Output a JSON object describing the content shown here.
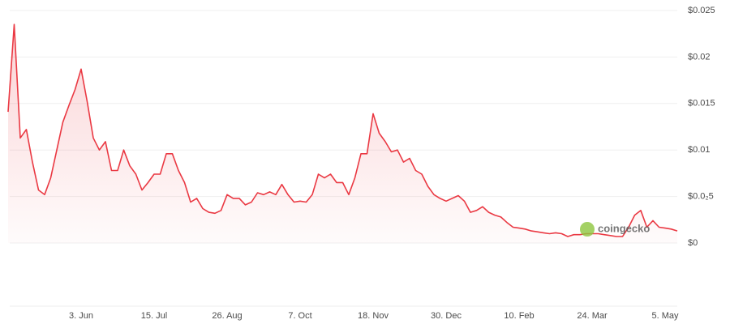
{
  "chart_data": {
    "type": "line",
    "watermark": "coingecko",
    "categories": [
      null,
      null,
      null,
      null,
      null,
      null,
      null,
      null,
      null,
      null,
      null,
      null,
      "3. Jun",
      null,
      null,
      null,
      null,
      null,
      null,
      null,
      null,
      null,
      null,
      null,
      "15. Jul",
      null,
      null,
      null,
      null,
      null,
      null,
      null,
      null,
      null,
      null,
      null,
      "26. Aug",
      null,
      null,
      null,
      null,
      null,
      null,
      null,
      null,
      null,
      null,
      null,
      "7. Oct",
      null,
      null,
      null,
      null,
      null,
      null,
      null,
      null,
      null,
      null,
      null,
      "18. Nov",
      null,
      null,
      null,
      null,
      null,
      null,
      null,
      null,
      null,
      null,
      null,
      "30. Dec",
      null,
      null,
      null,
      null,
      null,
      null,
      null,
      null,
      null,
      null,
      null,
      "10. Feb",
      null,
      null,
      null,
      null,
      null,
      null,
      null,
      null,
      null,
      null,
      null,
      "24. Mar",
      null,
      null,
      null,
      null,
      null,
      null,
      null,
      null,
      null,
      null,
      null,
      "5. May",
      null,
      null
    ],
    "series": [
      {
        "color": "#ea3943",
        "values": [
          0.0141,
          0.0235,
          0.0113,
          0.0122,
          0.0087,
          0.0057,
          0.0052,
          0.007,
          0.01,
          0.013,
          0.0148,
          0.0165,
          0.0187,
          0.0152,
          0.0113,
          0.01,
          0.0109,
          0.0078,
          0.0078,
          0.01,
          0.0083,
          0.0074,
          0.0057,
          0.0065,
          0.0074,
          0.0074,
          0.0096,
          0.0096,
          0.0078,
          0.0065,
          0.0044,
          0.0048,
          0.0037,
          0.0033,
          0.0032,
          0.0035,
          0.0052,
          0.0048,
          0.0048,
          0.0041,
          0.0044,
          0.0054,
          0.0052,
          0.0055,
          0.0052,
          0.0063,
          0.0052,
          0.0044,
          0.0045,
          0.0044,
          0.0052,
          0.0074,
          0.007,
          0.0074,
          0.0065,
          0.0065,
          0.0052,
          0.007,
          0.0096,
          0.0096,
          0.0139,
          0.0118,
          0.0109,
          0.0098,
          0.01,
          0.0087,
          0.0091,
          0.0078,
          0.0074,
          0.0061,
          0.0052,
          0.0048,
          0.0045,
          0.0048,
          0.0051,
          0.0045,
          0.0033,
          0.0035,
          0.0039,
          0.0033,
          0.003,
          0.0028,
          0.0022,
          0.0017,
          0.0016,
          0.0015,
          0.0013,
          0.0012,
          0.0011,
          0.001,
          0.0011,
          0.001,
          0.0007,
          0.0009,
          0.0009,
          0.001,
          0.001,
          0.001,
          0.0009,
          0.0008,
          0.0007,
          0.0007,
          0.0017,
          0.003,
          0.0035,
          0.0017,
          0.0024,
          0.0017,
          0.0016,
          0.0015,
          0.0013
        ]
      }
    ],
    "ylim": [
      0,
      0.025
    ],
    "yticks": [
      {
        "value": 0,
        "label": "$0"
      },
      {
        "value": 0.005,
        "label": "$0.0₂5"
      },
      {
        "value": 0.01,
        "label": "$0.01"
      },
      {
        "value": 0.015,
        "label": "$0.015"
      },
      {
        "value": 0.02,
        "label": "$0.02"
      },
      {
        "value": 0.025,
        "label": "$0.025"
      }
    ],
    "grid": true
  }
}
